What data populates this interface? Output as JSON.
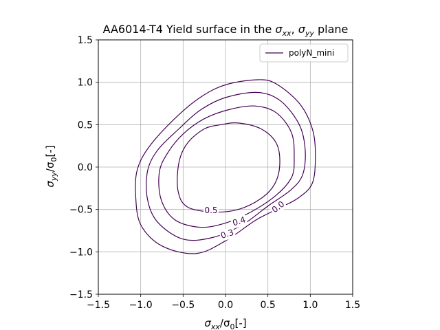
{
  "chart_data": {
    "type": "line",
    "title": "AA6014-T4 Yield surface in the σxx, σyy plane",
    "title_parts": {
      "prefix": "AA6014-T4 Yield surface in the ",
      "a": "σ",
      "a_sub": "xx",
      "sep": ", ",
      "b": "σ",
      "b_sub": "yy",
      "suffix": " plane"
    },
    "xlabel": "σxx/σ0[-]",
    "xlabel_parts": {
      "sym": "σ",
      "sub": "xx",
      "mid": "/σ",
      "sub2": "0",
      "suffix": "[-]"
    },
    "ylabel": "σyy/σ0[-]",
    "ylabel_parts": {
      "sym": "σ",
      "sub": "yy",
      "mid": "/σ",
      "sub2": "0",
      "suffix": "[-]"
    },
    "xlim": [
      -1.5,
      1.5
    ],
    "ylim": [
      -1.5,
      1.5
    ],
    "xticks": [
      -1.5,
      -1.0,
      -0.5,
      0.0,
      0.5,
      1.0,
      1.5
    ],
    "yticks": [
      -1.5,
      -1.0,
      -0.5,
      0.0,
      0.5,
      1.0,
      1.5
    ],
    "xtick_labels": [
      "−1.5",
      "−1.0",
      "−0.5",
      "0.0",
      "0.5",
      "1.0",
      "1.5"
    ],
    "ytick_labels": [
      "−1.5",
      "−1.0",
      "−0.5",
      "0.0",
      "0.5",
      "1.0",
      "1.5"
    ],
    "grid": true,
    "legend": {
      "position": "top-right",
      "entries": [
        "polyN_mini"
      ]
    },
    "color": "#440154",
    "series": [
      {
        "name": "polyN_mini",
        "level": "0.0",
        "points": [
          [
            0.38,
            1.03
          ],
          [
            0.6,
            0.98
          ],
          [
            0.88,
            0.74
          ],
          [
            1.03,
            0.43
          ],
          [
            1.06,
            0.1
          ],
          [
            1.02,
            -0.2
          ],
          [
            0.85,
            -0.37
          ],
          [
            0.62,
            -0.49
          ],
          [
            0.35,
            -0.63
          ],
          [
            0.0,
            -0.87
          ],
          [
            -0.35,
            -1.02
          ],
          [
            -0.75,
            -0.93
          ],
          [
            -1.0,
            -0.68
          ],
          [
            -1.06,
            -0.33
          ],
          [
            -1.04,
            -0.03
          ],
          [
            -0.9,
            0.24
          ],
          [
            -0.6,
            0.57
          ],
          [
            -0.3,
            0.82
          ],
          [
            0.0,
            0.97
          ]
        ]
      },
      {
        "name": "",
        "level": "0.3",
        "points": [
          [
            0.38,
            0.88
          ],
          [
            0.65,
            0.78
          ],
          [
            0.87,
            0.5
          ],
          [
            0.94,
            0.2
          ],
          [
            0.91,
            -0.09
          ],
          [
            0.77,
            -0.27
          ],
          [
            0.5,
            -0.46
          ],
          [
            0.2,
            -0.68
          ],
          [
            -0.15,
            -0.83
          ],
          [
            -0.5,
            -0.85
          ],
          [
            -0.8,
            -0.65
          ],
          [
            -0.92,
            -0.38
          ],
          [
            -0.92,
            -0.05
          ],
          [
            -0.8,
            0.2
          ],
          [
            -0.55,
            0.45
          ],
          [
            -0.3,
            0.67
          ],
          [
            0.0,
            0.82
          ]
        ]
      },
      {
        "name": "",
        "level": "0.4",
        "points": [
          [
            0.35,
            0.72
          ],
          [
            0.6,
            0.64
          ],
          [
            0.78,
            0.4
          ],
          [
            0.81,
            0.1
          ],
          [
            0.78,
            -0.12
          ],
          [
            0.6,
            -0.33
          ],
          [
            0.3,
            -0.53
          ],
          [
            0.0,
            -0.66
          ],
          [
            -0.3,
            -0.71
          ],
          [
            -0.6,
            -0.62
          ],
          [
            -0.76,
            -0.38
          ],
          [
            -0.78,
            -0.06
          ],
          [
            -0.68,
            0.17
          ],
          [
            -0.5,
            0.39
          ],
          [
            -0.25,
            0.57
          ],
          [
            0.05,
            0.68
          ]
        ]
      },
      {
        "name": "",
        "level": "0.5",
        "points": [
          [
            0.15,
            0.52
          ],
          [
            0.42,
            0.45
          ],
          [
            0.6,
            0.28
          ],
          [
            0.64,
            0.03
          ],
          [
            0.58,
            -0.2
          ],
          [
            0.42,
            -0.37
          ],
          [
            0.15,
            -0.5
          ],
          [
            -0.15,
            -0.53
          ],
          [
            -0.45,
            -0.47
          ],
          [
            -0.56,
            -0.28
          ],
          [
            -0.55,
            0.05
          ],
          [
            -0.45,
            0.28
          ],
          [
            -0.25,
            0.45
          ],
          [
            -0.05,
            0.5
          ]
        ]
      }
    ],
    "annotations": [
      {
        "text": "0.0",
        "x": 0.62,
        "y": -0.47,
        "rotation": -38
      },
      {
        "text": "0.3",
        "x": 0.02,
        "y": -0.79,
        "rotation": -18
      },
      {
        "text": "0.4",
        "x": 0.16,
        "y": -0.64,
        "rotation": -18
      },
      {
        "text": "0.5",
        "x": -0.17,
        "y": -0.51,
        "rotation": 0
      }
    ]
  }
}
